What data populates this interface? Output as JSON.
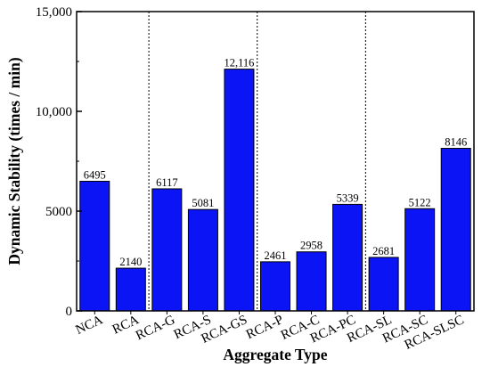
{
  "chart_data": {
    "type": "bar",
    "categories": [
      "NCA",
      "RCA",
      "RCA-G",
      "RCA-S",
      "RCA-GS",
      "RCA-P",
      "RCA-C",
      "RCA-PC",
      "RCA-SL",
      "RCA-SC",
      "RCA-SLSC"
    ],
    "values": [
      6495,
      2140,
      6117,
      5081,
      12116,
      2461,
      2958,
      5339,
      2681,
      5122,
      8146
    ],
    "data_labels": [
      "6495",
      "2140",
      "6117",
      "5081",
      "12,116",
      "2461",
      "2958",
      "5339",
      "2681",
      "5122",
      "8146"
    ],
    "title": "",
    "xlabel": "Aggregate Type",
    "ylabel": "Dynamic Stability (times / min)",
    "ylim": [
      0,
      15000
    ],
    "yticks": [
      0,
      5000,
      10000,
      15000
    ],
    "ytick_labels": [
      "0",
      "5000",
      "10,000",
      "15,000"
    ],
    "group_separators_after": [
      "RCA",
      "RCA-GS",
      "RCA-PC"
    ],
    "grid": false,
    "legend": "none",
    "colors": {
      "bar": "#0a14f5",
      "bar_edge": "#000000",
      "axis": "#000000"
    }
  }
}
